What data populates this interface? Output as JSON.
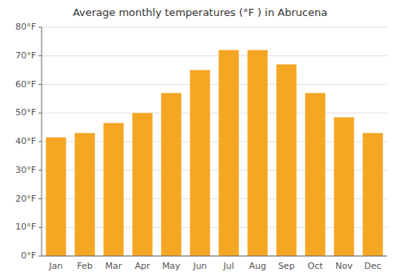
{
  "chart_data": {
    "type": "bar",
    "title": "Average monthly temperatures (°F ) in Abrucena",
    "categories": [
      "Jan",
      "Feb",
      "Mar",
      "Apr",
      "May",
      "Jun",
      "Jul",
      "Aug",
      "Sep",
      "Oct",
      "Nov",
      "Dec"
    ],
    "values": [
      41.5,
      43.0,
      46.5,
      50.0,
      57.0,
      65.0,
      72.0,
      72.0,
      67.0,
      57.0,
      48.5,
      43.0
    ],
    "color": "#F5A623",
    "ylim": [
      0,
      80
    ],
    "yticks": [
      {
        "value": 0,
        "label": "0°F"
      },
      {
        "value": 10,
        "label": "10°F"
      },
      {
        "value": 20,
        "label": "20°F"
      },
      {
        "value": 30,
        "label": "30°F"
      },
      {
        "value": 40,
        "label": "40°F"
      },
      {
        "value": 50,
        "label": "50°F"
      },
      {
        "value": 60,
        "label": "60°F"
      },
      {
        "value": 70,
        "label": "70°F"
      },
      {
        "value": 80,
        "label": "80°F"
      }
    ],
    "grid": true
  }
}
